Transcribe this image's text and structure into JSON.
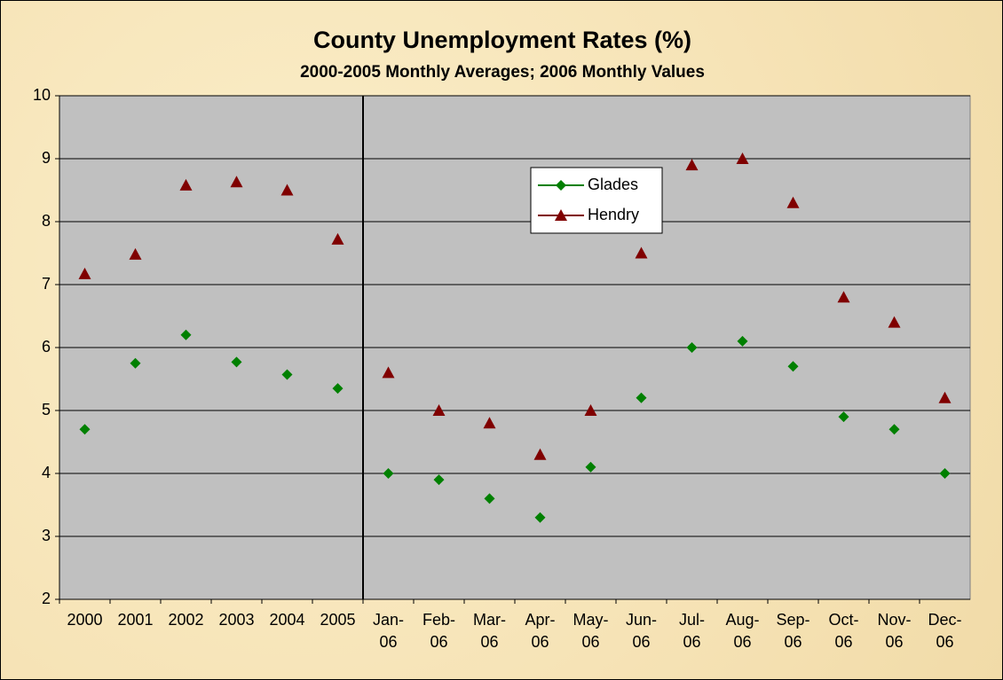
{
  "chart_data": {
    "type": "line",
    "title": "County Unemployment Rates (%)",
    "subtitle": "2000-2005 Monthly Averages; 2006 Monthly Values",
    "categories": [
      "2000",
      "2001",
      "2002",
      "2003",
      "2004",
      "2005",
      "Jan-06",
      "Feb-06",
      "Mar-06",
      "Apr-06",
      "May-06",
      "Jun-06",
      "Jul-06",
      "Aug-06",
      "Sep-06",
      "Oct-06",
      "Nov-06",
      "Dec-06"
    ],
    "series": [
      {
        "name": "Glades",
        "color": "#008000",
        "marker": "diamond",
        "values": [
          4.7,
          5.75,
          6.2,
          5.77,
          5.57,
          5.35,
          4.0,
          3.9,
          3.6,
          3.3,
          4.1,
          5.2,
          6.0,
          6.1,
          5.7,
          4.9,
          4.7,
          4.0
        ]
      },
      {
        "name": "Hendry",
        "color": "#800000",
        "marker": "triangle",
        "values": [
          7.17,
          7.48,
          8.58,
          8.63,
          8.5,
          7.72,
          5.6,
          5.0,
          4.8,
          4.3,
          5.0,
          7.5,
          8.9,
          9.0,
          8.3,
          6.8,
          6.4,
          5.2
        ]
      }
    ],
    "ylim": [
      2,
      10
    ],
    "yticks": [
      2,
      3,
      4,
      5,
      6,
      7,
      8,
      9,
      10
    ],
    "grid": true
  }
}
